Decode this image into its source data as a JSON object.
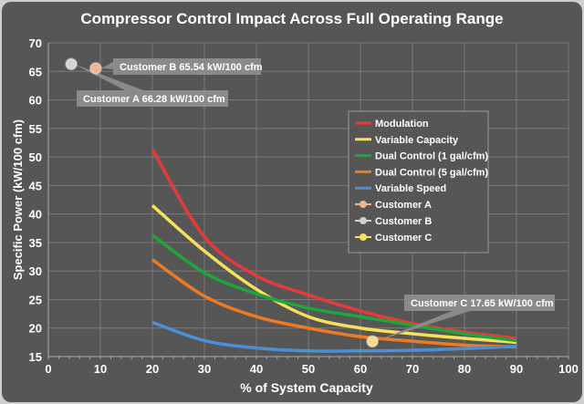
{
  "chart_data": {
    "type": "line",
    "title": "Compressor Control Impact Across Full Operating Range",
    "xlabel": "% of System Capacity",
    "ylabel": "Specific Power (kW/100 cfm)",
    "xlim": [
      0,
      100
    ],
    "ylim": [
      15,
      70
    ],
    "xticks": [
      0,
      10,
      20,
      30,
      40,
      50,
      60,
      70,
      80,
      90,
      100
    ],
    "yticks": [
      15,
      20,
      25,
      30,
      35,
      40,
      45,
      50,
      55,
      60,
      65,
      70
    ],
    "grid": true,
    "legend_position": "right",
    "x": [
      20,
      30,
      40,
      50,
      60,
      70,
      80,
      90
    ],
    "series": [
      {
        "name": "Modulation",
        "color": "#e8393a",
        "values": [
          51.3,
          36.0,
          29.2,
          25.8,
          23.0,
          20.8,
          19.3,
          18.2
        ]
      },
      {
        "name": "Variable Capacity",
        "color": "#f7e05a",
        "values": [
          41.5,
          33.5,
          26.8,
          22.0,
          20.0,
          19.0,
          18.2,
          17.5
        ]
      },
      {
        "name": "Dual Control (1 gal/cfm)",
        "color": "#1fa53c",
        "values": [
          36.3,
          29.7,
          26.0,
          23.5,
          22.0,
          20.5,
          19.0,
          17.8
        ]
      },
      {
        "name": "Dual Control (5 gal/cfm)",
        "color": "#ee7a22",
        "values": [
          32.0,
          25.6,
          22.0,
          20.0,
          18.5,
          17.7,
          17.0,
          16.7
        ]
      },
      {
        "name": "Variable Speed",
        "color": "#4b90d4",
        "values": [
          21.0,
          17.8,
          16.5,
          16.0,
          16.0,
          16.1,
          16.4,
          16.8
        ]
      }
    ],
    "points": [
      {
        "name": "Customer A",
        "legend_color": "#f2b48c",
        "marker_color": "#d4d4d4",
        "x": 4.4,
        "y": 66.28,
        "label": "Customer A  66.28 kW/100 cfm"
      },
      {
        "name": "Customer B",
        "legend_color": "#cfcfcf",
        "marker_color": "#f2b48c",
        "x": 9.1,
        "y": 65.54,
        "label": "Customer B  65.54 kW/100 cfm"
      },
      {
        "name": "Customer C",
        "legend_color": "#f7e05a",
        "marker_color": "#f5dc8a",
        "x": 62.3,
        "y": 17.65,
        "label": "Customer C  17.65 kW/100 cfm"
      }
    ]
  },
  "colors": {
    "background": "#565656",
    "grid": "#7a7a7a",
    "frame": "#cfcfcf",
    "callout": "#8a8a8a"
  }
}
